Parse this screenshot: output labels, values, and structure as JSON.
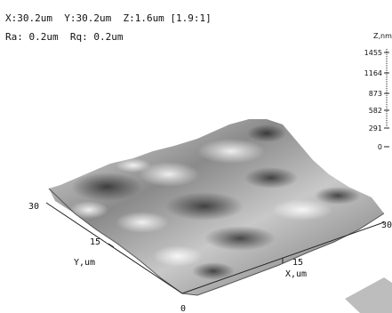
{
  "info": {
    "line1": "X:30.2um  Y:30.2um  Z:1.6um [1.9:1]",
    "line2": "Ra: 0.2um  Rq: 0.2um"
  },
  "z_scale": {
    "title": "Z,nm",
    "ticks": [
      "1455",
      "1164",
      "873",
      "582",
      "291",
      "0"
    ]
  },
  "axes": {
    "y_label": "Y,um",
    "x_label": "X,um",
    "y_max": "30",
    "y_mid": "15",
    "x_mid": "15",
    "x_max": "30",
    "origin": "0"
  },
  "colors": {
    "surface_light": "#f2f2f2",
    "surface_mid": "#9a9a9a",
    "surface_dark": "#3a3a3a",
    "axis": "#222222"
  }
}
